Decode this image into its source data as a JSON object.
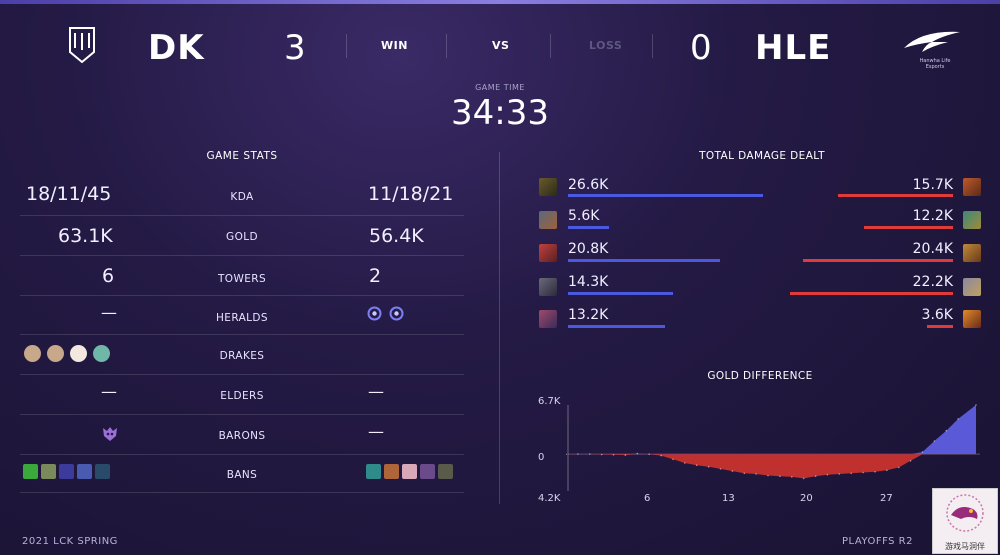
{
  "header": {
    "blue_team": "DK",
    "blue_score": "3",
    "result_win": "WIN",
    "vs": "VS",
    "result_loss": "LOSS",
    "red_score": "0",
    "red_team": "HLE",
    "hle_logo_sub1": "Hanwha Life",
    "hle_logo_sub2": "Esports",
    "game_time_label": "GAME TIME",
    "game_time": "34:33"
  },
  "game_stats": {
    "title": "GAME STATS",
    "rows": [
      {
        "label": "KDA",
        "blue": "18/11/45",
        "red": "11/18/21"
      },
      {
        "label": "GOLD",
        "blue": "63.1K",
        "red": "56.4K"
      },
      {
        "label": "TOWERS",
        "blue": "6",
        "red": "2"
      },
      {
        "label": "HERALDS",
        "blue": "—",
        "red": ""
      },
      {
        "label": "DRAKES",
        "blue": "",
        "red": ""
      },
      {
        "label": "ELDERS",
        "blue": "—",
        "red": "—"
      },
      {
        "label": "BARONS",
        "blue": "",
        "red": "—"
      },
      {
        "label": "BANS",
        "blue": "",
        "red": ""
      }
    ]
  },
  "damage": {
    "title": "TOTAL DAMAGE DEALT",
    "blue": [
      "26.6K",
      "5.6K",
      "20.8K",
      "14.3K",
      "13.2K"
    ],
    "red": [
      "15.7K",
      "12.2K",
      "20.4K",
      "22.2K",
      "3.6K"
    ],
    "blue_values_k": [
      26.6,
      5.6,
      20.8,
      14.3,
      13.2
    ],
    "red_values_k": [
      15.7,
      12.2,
      20.4,
      22.2,
      3.6
    ],
    "blue_color": "#4b58e0",
    "red_color": "#e03a3a"
  },
  "chart_data": {
    "type": "area",
    "title": "GOLD DIFFERENCE",
    "y_ticks": [
      "6.7K",
      "0",
      "4.2K"
    ],
    "x_ticks": [
      "6",
      "13",
      "20",
      "27"
    ],
    "ylim": [
      -4200,
      6700
    ],
    "xlim": [
      0,
      34.5
    ],
    "x": [
      0,
      1,
      2,
      3,
      4,
      5,
      6,
      7,
      8,
      9,
      10,
      11,
      12,
      13,
      14,
      15,
      16,
      17,
      18,
      19,
      20,
      21,
      22,
      23,
      24,
      25,
      26,
      27,
      28,
      29,
      30,
      31,
      32,
      33,
      34.5
    ],
    "values": [
      0,
      30,
      20,
      -50,
      -80,
      -120,
      80,
      0,
      -200,
      -700,
      -1200,
      -1500,
      -1700,
      -2000,
      -2300,
      -2600,
      -2700,
      -2900,
      -3000,
      -3100,
      -3300,
      -3000,
      -2800,
      -2700,
      -2600,
      -2500,
      -2400,
      -2200,
      -1800,
      -900,
      300,
      1800,
      3200,
      4800,
      6700
    ],
    "positive_color": "#5a5ad8",
    "negative_color": "#c0302e"
  },
  "footer": {
    "left": "2021 LCK SPRING",
    "right": "PLAYOFFS R2",
    "watermark": "游戏马洞伴"
  }
}
